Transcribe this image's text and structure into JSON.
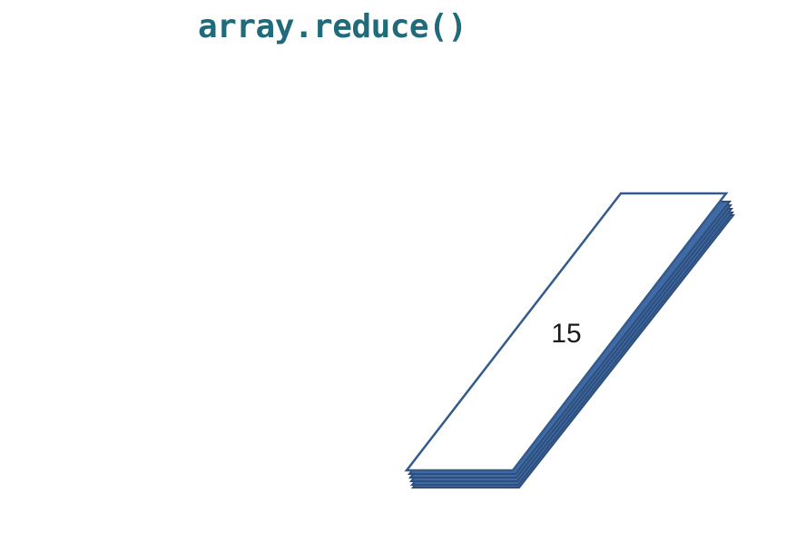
{
  "title": "array.reduce()",
  "result": {
    "value": "15"
  },
  "colors": {
    "title": "#1f6b7a",
    "stack_fill": "#3f6aa5",
    "stack_edge": "#2e4f7c",
    "top_card_fill": "#ffffff",
    "top_card_stroke": "#335b8c",
    "label": "#1a1a1a"
  }
}
